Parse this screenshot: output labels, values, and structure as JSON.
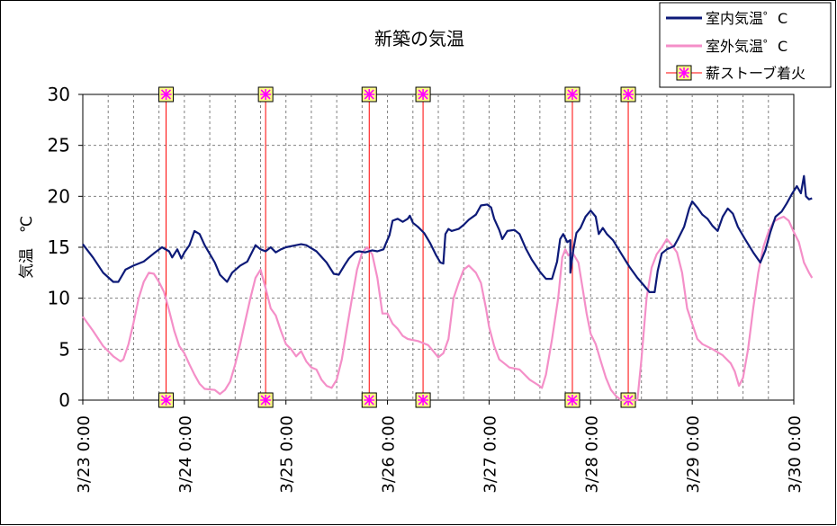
{
  "chart_data": {
    "type": "line",
    "title": "新築の気温",
    "ylabel": "気温　℃",
    "xlabel": "",
    "ylim": [
      0,
      30
    ],
    "yticks": [
      0,
      5,
      10,
      15,
      20,
      25,
      30
    ],
    "xlim_days": [
      0,
      7
    ],
    "xtick_labels": [
      "3/23 0:00",
      "3/24 0:00",
      "3/25 0:00",
      "3/26 0:00",
      "3/27 0:00",
      "3/28 0:00",
      "3/29 0:00",
      "3/30 0:00"
    ],
    "grid": true,
    "legend_position": "top-right",
    "series": [
      {
        "name": "室内気温゜C",
        "color": "#0d1a78",
        "points": [
          [
            0.0,
            15.3
          ],
          [
            0.1,
            14.0
          ],
          [
            0.2,
            12.5
          ],
          [
            0.3,
            11.6
          ],
          [
            0.35,
            11.6
          ],
          [
            0.42,
            12.8
          ],
          [
            0.5,
            13.2
          ],
          [
            0.6,
            13.6
          ],
          [
            0.7,
            14.4
          ],
          [
            0.78,
            15.0
          ],
          [
            0.85,
            14.6
          ],
          [
            0.88,
            14.0
          ],
          [
            0.93,
            14.8
          ],
          [
            0.97,
            13.9
          ],
          [
            1.0,
            14.5
          ],
          [
            1.05,
            15.2
          ],
          [
            1.1,
            16.6
          ],
          [
            1.15,
            16.3
          ],
          [
            1.2,
            15.2
          ],
          [
            1.3,
            13.5
          ],
          [
            1.35,
            12.3
          ],
          [
            1.42,
            11.6
          ],
          [
            1.47,
            12.5
          ],
          [
            1.55,
            13.2
          ],
          [
            1.62,
            13.6
          ],
          [
            1.7,
            15.2
          ],
          [
            1.75,
            14.8
          ],
          [
            1.8,
            14.6
          ],
          [
            1.85,
            15.0
          ],
          [
            1.9,
            14.5
          ],
          [
            1.95,
            14.8
          ],
          [
            2.0,
            15.0
          ],
          [
            2.1,
            15.2
          ],
          [
            2.15,
            15.3
          ],
          [
            2.2,
            15.2
          ],
          [
            2.3,
            14.6
          ],
          [
            2.4,
            13.5
          ],
          [
            2.47,
            12.4
          ],
          [
            2.52,
            12.3
          ],
          [
            2.58,
            13.3
          ],
          [
            2.62,
            13.9
          ],
          [
            2.68,
            14.5
          ],
          [
            2.72,
            14.6
          ],
          [
            2.78,
            14.5
          ],
          [
            2.85,
            14.7
          ],
          [
            2.9,
            14.6
          ],
          [
            2.96,
            14.8
          ],
          [
            2.99,
            15.5
          ],
          [
            3.02,
            16.2
          ],
          [
            3.05,
            17.6
          ],
          [
            3.1,
            17.8
          ],
          [
            3.15,
            17.5
          ],
          [
            3.2,
            17.8
          ],
          [
            3.22,
            18.1
          ],
          [
            3.25,
            17.4
          ],
          [
            3.3,
            17.0
          ],
          [
            3.36,
            16.4
          ],
          [
            3.42,
            15.4
          ],
          [
            3.48,
            14.2
          ],
          [
            3.52,
            13.5
          ],
          [
            3.55,
            13.4
          ],
          [
            3.57,
            16.3
          ],
          [
            3.6,
            16.8
          ],
          [
            3.63,
            16.6
          ],
          [
            3.7,
            16.8
          ],
          [
            3.75,
            17.2
          ],
          [
            3.8,
            17.7
          ],
          [
            3.87,
            18.2
          ],
          [
            3.92,
            19.1
          ],
          [
            3.98,
            19.2
          ],
          [
            4.02,
            18.9
          ],
          [
            4.05,
            17.8
          ],
          [
            4.1,
            16.7
          ],
          [
            4.13,
            15.8
          ],
          [
            4.18,
            16.6
          ],
          [
            4.25,
            16.7
          ],
          [
            4.3,
            16.3
          ],
          [
            4.36,
            14.9
          ],
          [
            4.42,
            13.8
          ],
          [
            4.5,
            12.6
          ],
          [
            4.56,
            11.9
          ],
          [
            4.62,
            11.9
          ],
          [
            4.67,
            13.6
          ],
          [
            4.7,
            15.8
          ],
          [
            4.73,
            16.3
          ],
          [
            4.77,
            15.5
          ],
          [
            4.8,
            15.7
          ],
          [
            4.8,
            12.5
          ],
          [
            4.83,
            14.8
          ],
          [
            4.86,
            16.4
          ],
          [
            4.9,
            16.9
          ],
          [
            4.95,
            18.0
          ],
          [
            5.0,
            18.6
          ],
          [
            5.05,
            18.0
          ],
          [
            5.08,
            16.3
          ],
          [
            5.12,
            16.9
          ],
          [
            5.16,
            16.3
          ],
          [
            5.22,
            15.7
          ],
          [
            5.3,
            14.4
          ],
          [
            5.38,
            13.1
          ],
          [
            5.46,
            12.0
          ],
          [
            5.52,
            11.3
          ],
          [
            5.58,
            10.6
          ],
          [
            5.63,
            10.6
          ],
          [
            5.66,
            12.7
          ],
          [
            5.7,
            14.4
          ],
          [
            5.75,
            14.8
          ],
          [
            5.82,
            15.1
          ],
          [
            5.86,
            15.8
          ],
          [
            5.92,
            17.0
          ],
          [
            5.97,
            18.8
          ],
          [
            6.0,
            19.5
          ],
          [
            6.05,
            18.9
          ],
          [
            6.1,
            18.2
          ],
          [
            6.15,
            17.8
          ],
          [
            6.2,
            17.1
          ],
          [
            6.25,
            16.6
          ],
          [
            6.3,
            18.0
          ],
          [
            6.35,
            18.8
          ],
          [
            6.4,
            18.3
          ],
          [
            6.45,
            17.0
          ],
          [
            6.52,
            15.8
          ],
          [
            6.6,
            14.5
          ],
          [
            6.67,
            13.5
          ],
          [
            6.72,
            14.7
          ],
          [
            6.77,
            16.5
          ],
          [
            6.82,
            18.0
          ],
          [
            6.88,
            18.5
          ],
          [
            6.93,
            19.3
          ],
          [
            6.98,
            20.2
          ],
          [
            7.03,
            21.0
          ],
          [
            7.07,
            20.3
          ],
          [
            7.1,
            22.0
          ],
          [
            7.12,
            20.0
          ],
          [
            7.15,
            19.7
          ],
          [
            7.18,
            19.8
          ]
        ]
      },
      {
        "name": "室外気温゜C",
        "color": "#f48fc8",
        "points": [
          [
            0.0,
            8.2
          ],
          [
            0.1,
            6.8
          ],
          [
            0.2,
            5.3
          ],
          [
            0.3,
            4.3
          ],
          [
            0.37,
            3.8
          ],
          [
            0.4,
            4.0
          ],
          [
            0.45,
            5.5
          ],
          [
            0.5,
            7.6
          ],
          [
            0.55,
            10.0
          ],
          [
            0.6,
            11.6
          ],
          [
            0.65,
            12.5
          ],
          [
            0.7,
            12.4
          ],
          [
            0.75,
            11.6
          ],
          [
            0.8,
            10.6
          ],
          [
            0.85,
            8.8
          ],
          [
            0.9,
            6.8
          ],
          [
            0.95,
            5.3
          ],
          [
            1.0,
            4.6
          ],
          [
            1.05,
            3.5
          ],
          [
            1.1,
            2.5
          ],
          [
            1.15,
            1.6
          ],
          [
            1.2,
            1.1
          ],
          [
            1.3,
            1.0
          ],
          [
            1.35,
            0.6
          ],
          [
            1.4,
            1.0
          ],
          [
            1.45,
            1.8
          ],
          [
            1.5,
            3.5
          ],
          [
            1.55,
            5.5
          ],
          [
            1.6,
            7.8
          ],
          [
            1.65,
            10.0
          ],
          [
            1.7,
            12.0
          ],
          [
            1.75,
            12.8
          ],
          [
            1.8,
            11.0
          ],
          [
            1.85,
            9.0
          ],
          [
            1.9,
            8.3
          ],
          [
            1.95,
            6.8
          ],
          [
            2.0,
            5.5
          ],
          [
            2.05,
            5.0
          ],
          [
            2.1,
            4.3
          ],
          [
            2.15,
            4.8
          ],
          [
            2.2,
            3.8
          ],
          [
            2.25,
            3.2
          ],
          [
            2.3,
            3.0
          ],
          [
            2.35,
            2.0
          ],
          [
            2.4,
            1.4
          ],
          [
            2.45,
            1.2
          ],
          [
            2.5,
            2.0
          ],
          [
            2.55,
            4.0
          ],
          [
            2.6,
            7.0
          ],
          [
            2.65,
            10.0
          ],
          [
            2.7,
            12.8
          ],
          [
            2.75,
            14.5
          ],
          [
            2.8,
            15.0
          ],
          [
            2.85,
            14.3
          ],
          [
            2.9,
            12.0
          ],
          [
            2.95,
            8.5
          ],
          [
            3.0,
            8.5
          ],
          [
            3.05,
            7.5
          ],
          [
            3.1,
            7.0
          ],
          [
            3.15,
            6.3
          ],
          [
            3.2,
            6.0
          ],
          [
            3.3,
            5.8
          ],
          [
            3.4,
            5.4
          ],
          [
            3.45,
            4.8
          ],
          [
            3.5,
            4.2
          ],
          [
            3.55,
            4.6
          ],
          [
            3.6,
            6.0
          ],
          [
            3.65,
            10.0
          ],
          [
            3.7,
            11.5
          ],
          [
            3.75,
            12.8
          ],
          [
            3.8,
            13.2
          ],
          [
            3.87,
            12.5
          ],
          [
            3.92,
            11.5
          ],
          [
            3.97,
            9.0
          ],
          [
            4.0,
            7.2
          ],
          [
            4.05,
            5.3
          ],
          [
            4.1,
            4.0
          ],
          [
            4.2,
            3.2
          ],
          [
            4.3,
            3.0
          ],
          [
            4.4,
            2.0
          ],
          [
            4.48,
            1.5
          ],
          [
            4.52,
            1.2
          ],
          [
            4.56,
            2.5
          ],
          [
            4.62,
            6.0
          ],
          [
            4.68,
            10.0
          ],
          [
            4.72,
            14.0
          ],
          [
            4.75,
            14.8
          ],
          [
            4.78,
            14.2
          ],
          [
            4.82,
            14.5
          ],
          [
            4.88,
            13.5
          ],
          [
            4.92,
            11.0
          ],
          [
            4.96,
            8.5
          ],
          [
            5.0,
            6.5
          ],
          [
            5.05,
            5.5
          ],
          [
            5.1,
            3.8
          ],
          [
            5.15,
            2.2
          ],
          [
            5.2,
            1.0
          ],
          [
            5.25,
            0.4
          ],
          [
            5.3,
            0.0
          ],
          [
            5.4,
            0.0
          ],
          [
            5.46,
            0.0
          ],
          [
            5.5,
            4.0
          ],
          [
            5.55,
            10.0
          ],
          [
            5.6,
            13.0
          ],
          [
            5.65,
            14.3
          ],
          [
            5.7,
            15.0
          ],
          [
            5.75,
            15.8
          ],
          [
            5.8,
            15.2
          ],
          [
            5.85,
            14.5
          ],
          [
            5.9,
            12.5
          ],
          [
            5.95,
            9.0
          ],
          [
            6.0,
            7.5
          ],
          [
            6.05,
            6.0
          ],
          [
            6.1,
            5.5
          ],
          [
            6.2,
            5.0
          ],
          [
            6.3,
            4.4
          ],
          [
            6.38,
            3.6
          ],
          [
            6.42,
            2.8
          ],
          [
            6.46,
            1.4
          ],
          [
            6.5,
            2.2
          ],
          [
            6.55,
            5.0
          ],
          [
            6.6,
            9.0
          ],
          [
            6.65,
            12.5
          ],
          [
            6.7,
            15.0
          ],
          [
            6.75,
            16.5
          ],
          [
            6.8,
            17.5
          ],
          [
            6.85,
            17.8
          ],
          [
            6.9,
            18.0
          ],
          [
            6.95,
            17.6
          ],
          [
            7.0,
            16.5
          ],
          [
            7.05,
            15.5
          ],
          [
            7.1,
            13.5
          ],
          [
            7.15,
            12.5
          ],
          [
            7.18,
            12.0
          ]
        ]
      },
      {
        "name": "薪ストーブ着火",
        "color": "#ff0000",
        "marker_fill": "#ffff88",
        "marker_star": "#ff00ff",
        "x": [
          0.82,
          1.8,
          2.82,
          3.35,
          4.82,
          5.37
        ]
      }
    ]
  }
}
